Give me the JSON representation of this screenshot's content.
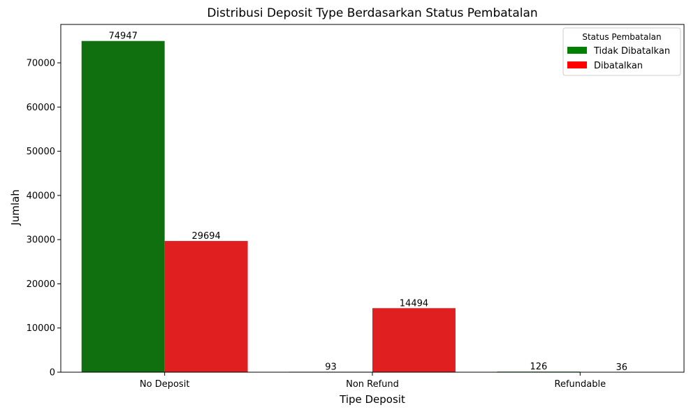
{
  "chart_data": {
    "type": "bar",
    "title": "Distribusi Deposit Type Berdasarkan Status Pembatalan",
    "xlabel": "Tipe Deposit",
    "ylabel": "Jumlah",
    "categories": [
      "No Deposit",
      "Non Refund",
      "Refundable"
    ],
    "series": [
      {
        "name": "Tidak Dibatalkan",
        "color": "#107010",
        "legend_color": "#008000",
        "values": [
          74947,
          93,
          126
        ]
      },
      {
        "name": "Dibatalkan",
        "color": "#E02020",
        "legend_color": "#FF0000",
        "values": [
          29694,
          14494,
          36
        ]
      }
    ],
    "ylim": [
      0,
      78692
    ],
    "yticks": [
      0,
      10000,
      20000,
      30000,
      40000,
      50000,
      60000,
      70000
    ],
    "grid": false,
    "legend": {
      "title": "Status Pembatalan",
      "position": "top-right"
    }
  }
}
